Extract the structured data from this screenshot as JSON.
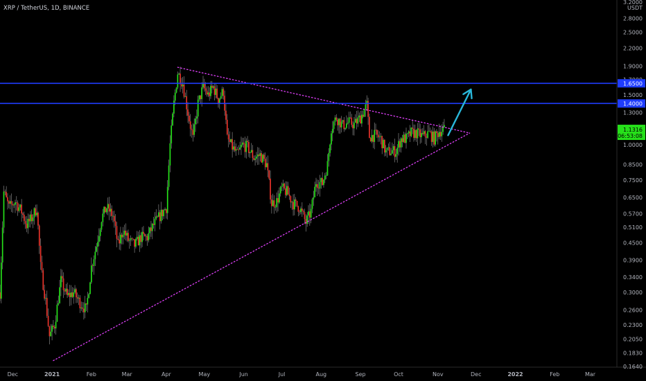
{
  "header": {
    "title": "XRP / TetherUS, 1D, BINANCE"
  },
  "colors": {
    "background": "#000000",
    "up_candle": "#26e01a",
    "down_candle": "#e8332a",
    "wick": "#9a9a9a",
    "horizontal_line": "#1f3dff",
    "trendline": "#e040fb",
    "arrow": "#29b6d9",
    "axis_text": "#b2b5be",
    "price_tag": "#26e01a",
    "hline_tag": "#1f3dff"
  },
  "chart_data": {
    "type": "candlestick",
    "title": "XRP / TetherUS, 1D, BINANCE",
    "y_scale": "log",
    "ylim": [
      0.164,
      3.2
    ],
    "y_unit_label": "USDT",
    "y_ticks": [
      "3.2000",
      "2.8000",
      "2.5000",
      "2.2000",
      "1.9000",
      "1.7000",
      "1.5000",
      "1.3000",
      "1.1500",
      "1.0000",
      "0.8500",
      "0.7500",
      "0.6500",
      "0.5700",
      "0.5100",
      "0.4500",
      "0.3900",
      "0.3400",
      "0.3000",
      "0.2600",
      "0.2300",
      "0.2050",
      "0.1830",
      "0.1640"
    ],
    "y_tick_values": [
      3.2,
      2.8,
      2.5,
      2.2,
      1.9,
      1.7,
      1.5,
      1.3,
      1.15,
      1.0,
      0.85,
      0.75,
      0.65,
      0.57,
      0.51,
      0.45,
      0.39,
      0.34,
      0.3,
      0.26,
      0.23,
      0.205,
      0.183,
      0.164
    ],
    "x_start": "2020-11-21",
    "x_end": "2022-03-22",
    "x_ticks": [
      "Dec",
      "2021",
      "Feb",
      "Mar",
      "Apr",
      "May",
      "Jun",
      "Jul",
      "Aug",
      "Sep",
      "Oct",
      "Nov",
      "Dec",
      "2022",
      "Feb",
      "Mar"
    ],
    "x_tick_dates": [
      "2020-12-01",
      "2021-01-01",
      "2021-02-01",
      "2021-03-01",
      "2021-04-01",
      "2021-05-01",
      "2021-06-01",
      "2021-07-01",
      "2021-08-01",
      "2021-09-01",
      "2021-10-01",
      "2021-11-01",
      "2021-12-01",
      "2022-01-01",
      "2022-02-01",
      "2022-03-01"
    ],
    "x_tick_bold": [
      false,
      true,
      false,
      false,
      false,
      false,
      false,
      false,
      false,
      false,
      false,
      false,
      false,
      true,
      false,
      false
    ],
    "horizontal_levels": [
      {
        "value": 1.65,
        "label": "1.6500"
      },
      {
        "value": 1.4,
        "label": "1.4000"
      }
    ],
    "last_price": {
      "value": 1.1316,
      "label": "1.1316",
      "countdown": "06:53:08"
    },
    "trendlines": [
      {
        "name": "",
        "points": [
          [
            "2021-04-10",
            1.88
          ],
          [
            "2021-11-26",
            1.1
          ]
        ]
      },
      {
        "name": "",
        "points": [
          [
            "2021-01-02",
            0.172
          ],
          [
            "2021-11-26",
            1.1
          ]
        ]
      }
    ],
    "arrow": {
      "from": [
        "2021-11-09",
        1.08
      ],
      "to": [
        "2021-11-27",
        1.57
      ]
    },
    "price_path": [
      [
        "2020-11-21",
        0.3
      ],
      [
        "2020-11-24",
        0.68
      ],
      [
        "2020-11-28",
        0.6
      ],
      [
        "2020-12-03",
        0.63
      ],
      [
        "2020-12-08",
        0.58
      ],
      [
        "2020-12-12",
        0.52
      ],
      [
        "2020-12-16",
        0.55
      ],
      [
        "2020-12-20",
        0.6
      ],
      [
        "2020-12-23",
        0.37
      ],
      [
        "2020-12-27",
        0.28
      ],
      [
        "2020-12-30",
        0.21
      ],
      [
        "2021-01-03",
        0.23
      ],
      [
        "2021-01-08",
        0.33
      ],
      [
        "2021-01-13",
        0.29
      ],
      [
        "2021-01-18",
        0.3
      ],
      [
        "2021-01-22",
        0.28
      ],
      [
        "2021-01-28",
        0.26
      ],
      [
        "2021-02-01",
        0.37
      ],
      [
        "2021-02-05",
        0.44
      ],
      [
        "2021-02-09",
        0.55
      ],
      [
        "2021-02-13",
        0.6
      ],
      [
        "2021-02-18",
        0.56
      ],
      [
        "2021-02-22",
        0.44
      ],
      [
        "2021-02-26",
        0.5
      ],
      [
        "2021-03-02",
        0.46
      ],
      [
        "2021-03-07",
        0.44
      ],
      [
        "2021-03-12",
        0.47
      ],
      [
        "2021-03-17",
        0.47
      ],
      [
        "2021-03-22",
        0.52
      ],
      [
        "2021-03-27",
        0.56
      ],
      [
        "2021-04-01",
        0.6
      ],
      [
        "2021-04-04",
        1.0
      ],
      [
        "2021-04-07",
        1.4
      ],
      [
        "2021-04-10",
        1.8
      ],
      [
        "2021-04-14",
        1.65
      ],
      [
        "2021-04-18",
        1.3
      ],
      [
        "2021-04-22",
        1.05
      ],
      [
        "2021-04-26",
        1.4
      ],
      [
        "2021-04-30",
        1.6
      ],
      [
        "2021-05-04",
        1.5
      ],
      [
        "2021-05-08",
        1.6
      ],
      [
        "2021-05-12",
        1.45
      ],
      [
        "2021-05-16",
        1.55
      ],
      [
        "2021-05-19",
        1.05
      ],
      [
        "2021-05-23",
        0.98
      ],
      [
        "2021-05-27",
        0.92
      ],
      [
        "2021-05-31",
        1.0
      ],
      [
        "2021-06-04",
        0.98
      ],
      [
        "2021-06-09",
        0.9
      ],
      [
        "2021-06-14",
        0.92
      ],
      [
        "2021-06-19",
        0.85
      ],
      [
        "2021-06-23",
        0.62
      ],
      [
        "2021-06-27",
        0.63
      ],
      [
        "2021-07-01",
        0.7
      ],
      [
        "2021-07-05",
        0.68
      ],
      [
        "2021-07-10",
        0.62
      ],
      [
        "2021-07-15",
        0.6
      ],
      [
        "2021-07-20",
        0.53
      ],
      [
        "2021-07-24",
        0.58
      ],
      [
        "2021-07-28",
        0.74
      ],
      [
        "2021-08-02",
        0.73
      ],
      [
        "2021-08-06",
        0.85
      ],
      [
        "2021-08-09",
        1.15
      ],
      [
        "2021-08-13",
        1.25
      ],
      [
        "2021-08-18",
        1.17
      ],
      [
        "2021-08-23",
        1.2
      ],
      [
        "2021-08-27",
        1.18
      ],
      [
        "2021-09-01",
        1.25
      ],
      [
        "2021-09-06",
        1.38
      ],
      [
        "2021-09-08",
        1.07
      ],
      [
        "2021-09-13",
        1.08
      ],
      [
        "2021-09-17",
        1.05
      ],
      [
        "2021-09-21",
        0.94
      ],
      [
        "2021-09-25",
        0.95
      ],
      [
        "2021-09-29",
        0.95
      ],
      [
        "2021-10-03",
        1.05
      ],
      [
        "2021-10-07",
        1.05
      ],
      [
        "2021-10-11",
        1.1
      ],
      [
        "2021-10-15",
        1.1
      ],
      [
        "2021-10-20",
        1.07
      ],
      [
        "2021-10-25",
        1.1
      ],
      [
        "2021-10-29",
        1.05
      ],
      [
        "2021-11-02",
        1.12
      ],
      [
        "2021-11-06",
        1.13
      ]
    ]
  }
}
